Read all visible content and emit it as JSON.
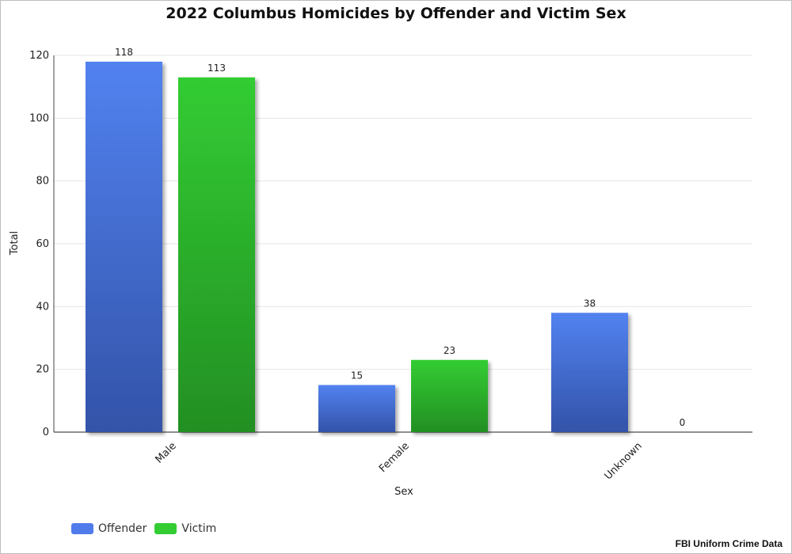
{
  "chart_data": {
    "type": "bar",
    "title": "2022 Columbus Homicides by Offender and Victim Sex",
    "xlabel": "Sex",
    "ylabel": "Total",
    "categories": [
      "Male",
      "Female",
      "Unknown"
    ],
    "series": [
      {
        "name": "Offender",
        "values": [
          118,
          15,
          38
        ],
        "color": "#4f7cea"
      },
      {
        "name": "Victim",
        "values": [
          113,
          23,
          0
        ],
        "color": "#33cc33"
      }
    ],
    "ylim": [
      0,
      120
    ],
    "yticks": [
      0,
      20,
      40,
      60,
      80,
      100,
      120
    ],
    "grid": true,
    "legend_position": "bottom-left",
    "data_labels": true
  },
  "source": "FBI Uniform Crime Data"
}
